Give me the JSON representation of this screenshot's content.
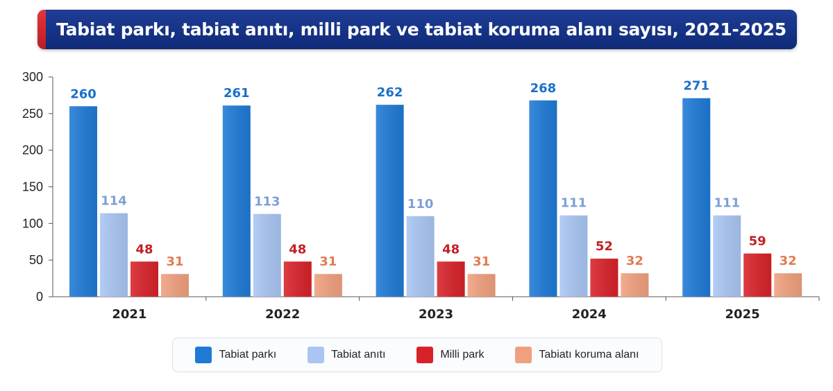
{
  "title": "Tabiat parkı, tabiat anıtı, milli park ve tabiat koruma alanı sayısı, 2021-2025",
  "chart_data": {
    "type": "bar",
    "categories": [
      "2021",
      "2022",
      "2023",
      "2024",
      "2025"
    ],
    "series": [
      {
        "name": "Tabiat parkı",
        "values": [
          260,
          261,
          262,
          268,
          271
        ],
        "color": "#1f7ad6",
        "label_color": "#1a6fc9"
      },
      {
        "name": "Tabiat anıtı",
        "values": [
          114,
          113,
          110,
          111,
          111
        ],
        "color": "#a9c6f3",
        "label_color": "#7c9fd8"
      },
      {
        "name": "Milli park",
        "values": [
          48,
          48,
          48,
          52,
          59
        ],
        "color": "#d8222a",
        "label_color": "#c41e25"
      },
      {
        "name": "Tabiatı koruma alanı",
        "values": [
          31,
          31,
          31,
          32,
          32
        ],
        "color": "#f0a07e",
        "label_color": "#e07b52"
      }
    ],
    "ylim": [
      0,
      300
    ],
    "yticks": [
      0,
      50,
      100,
      150,
      200,
      250,
      300
    ],
    "grid": false,
    "legend_position": "bottom"
  }
}
